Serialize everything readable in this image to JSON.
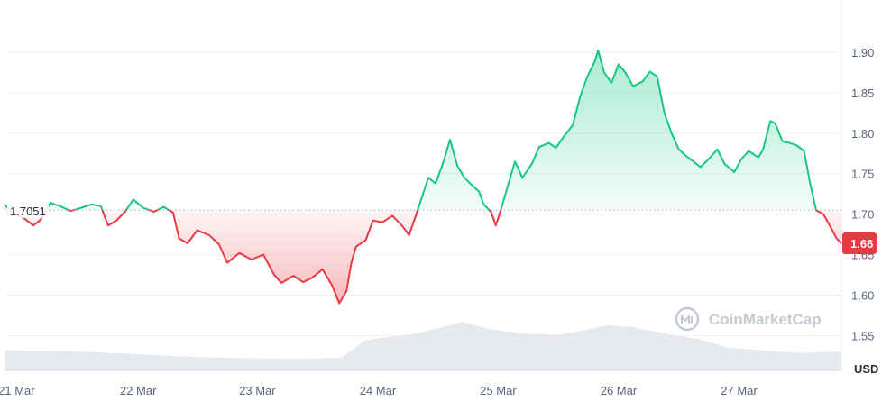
{
  "chart_data": {
    "type": "area",
    "title": "",
    "currency_label": "USD",
    "reference_price_label": "1.7051",
    "reference_price": 1.7051,
    "current_price_label": "1.66",
    "current_price": 1.664,
    "watermark": "CoinMarketCap",
    "ylim": [
      1.5,
      1.96
    ],
    "y_ticks": [
      "1.90",
      "1.85",
      "1.80",
      "1.75",
      "1.70",
      "1.65",
      "1.60",
      "1.55"
    ],
    "y_tick_values": [
      1.9,
      1.85,
      1.8,
      1.75,
      1.7,
      1.65,
      1.6,
      1.55
    ],
    "x_range_days": [
      0,
      6.95
    ],
    "x_ticks": [
      "21 Mar",
      "22 Mar",
      "23 Mar",
      "24 Mar",
      "25 Mar",
      "26 Mar",
      "27 Mar"
    ],
    "x_tick_days": [
      0.1,
      1.11,
      2.1,
      3.1,
      4.1,
      5.1,
      6.1
    ],
    "colors": {
      "up": "#16c784",
      "down": "#ea3943",
      "up_fill": "#16c784",
      "down_fill": "#ea3943",
      "volume": "#e6e9ee"
    },
    "price_points": [
      [
        0.0,
        1.712
      ],
      [
        0.08,
        1.7
      ],
      [
        0.16,
        1.695
      ],
      [
        0.24,
        1.686
      ],
      [
        0.3,
        1.693
      ],
      [
        0.38,
        1.714
      ],
      [
        0.46,
        1.71
      ],
      [
        0.55,
        1.704
      ],
      [
        0.64,
        1.708
      ],
      [
        0.72,
        1.712
      ],
      [
        0.8,
        1.71
      ],
      [
        0.86,
        1.686
      ],
      [
        0.93,
        1.692
      ],
      [
        1.0,
        1.703
      ],
      [
        1.07,
        1.718
      ],
      [
        1.15,
        1.708
      ],
      [
        1.24,
        1.703
      ],
      [
        1.32,
        1.709
      ],
      [
        1.4,
        1.702
      ],
      [
        1.45,
        1.67
      ],
      [
        1.52,
        1.664
      ],
      [
        1.6,
        1.68
      ],
      [
        1.7,
        1.674
      ],
      [
        1.78,
        1.663
      ],
      [
        1.85,
        1.64
      ],
      [
        1.95,
        1.652
      ],
      [
        2.05,
        1.644
      ],
      [
        2.15,
        1.65
      ],
      [
        2.24,
        1.625
      ],
      [
        2.3,
        1.615
      ],
      [
        2.4,
        1.624
      ],
      [
        2.48,
        1.616
      ],
      [
        2.56,
        1.622
      ],
      [
        2.64,
        1.632
      ],
      [
        2.72,
        1.612
      ],
      [
        2.78,
        1.59
      ],
      [
        2.84,
        1.605
      ],
      [
        2.88,
        1.64
      ],
      [
        2.92,
        1.66
      ],
      [
        3.0,
        1.668
      ],
      [
        3.06,
        1.692
      ],
      [
        3.14,
        1.69
      ],
      [
        3.22,
        1.698
      ],
      [
        3.3,
        1.686
      ],
      [
        3.36,
        1.674
      ],
      [
        3.42,
        1.7
      ],
      [
        3.46,
        1.718
      ],
      [
        3.52,
        1.745
      ],
      [
        3.58,
        1.738
      ],
      [
        3.64,
        1.762
      ],
      [
        3.7,
        1.792
      ],
      [
        3.76,
        1.76
      ],
      [
        3.82,
        1.745
      ],
      [
        3.88,
        1.736
      ],
      [
        3.94,
        1.728
      ],
      [
        3.98,
        1.712
      ],
      [
        4.04,
        1.703
      ],
      [
        4.08,
        1.686
      ],
      [
        4.12,
        1.704
      ],
      [
        4.18,
        1.735
      ],
      [
        4.24,
        1.765
      ],
      [
        4.3,
        1.745
      ],
      [
        4.38,
        1.762
      ],
      [
        4.44,
        1.783
      ],
      [
        4.52,
        1.788
      ],
      [
        4.58,
        1.782
      ],
      [
        4.64,
        1.795
      ],
      [
        4.72,
        1.81
      ],
      [
        4.78,
        1.845
      ],
      [
        4.84,
        1.87
      ],
      [
        4.9,
        1.888
      ],
      [
        4.93,
        1.902
      ],
      [
        4.98,
        1.875
      ],
      [
        5.04,
        1.862
      ],
      [
        5.1,
        1.885
      ],
      [
        5.16,
        1.874
      ],
      [
        5.22,
        1.858
      ],
      [
        5.3,
        1.864
      ],
      [
        5.36,
        1.876
      ],
      [
        5.42,
        1.87
      ],
      [
        5.48,
        1.825
      ],
      [
        5.54,
        1.8
      ],
      [
        5.6,
        1.78
      ],
      [
        5.66,
        1.772
      ],
      [
        5.72,
        1.765
      ],
      [
        5.78,
        1.758
      ],
      [
        5.86,
        1.77
      ],
      [
        5.92,
        1.78
      ],
      [
        5.98,
        1.762
      ],
      [
        6.06,
        1.752
      ],
      [
        6.12,
        1.768
      ],
      [
        6.18,
        1.778
      ],
      [
        6.26,
        1.77
      ],
      [
        6.3,
        1.78
      ],
      [
        6.36,
        1.815
      ],
      [
        6.4,
        1.812
      ],
      [
        6.46,
        1.79
      ],
      [
        6.52,
        1.788
      ],
      [
        6.58,
        1.785
      ],
      [
        6.64,
        1.778
      ],
      [
        6.69,
        1.738
      ],
      [
        6.74,
        1.705
      ],
      [
        6.8,
        1.7
      ],
      [
        6.86,
        1.684
      ],
      [
        6.91,
        1.67
      ],
      [
        6.95,
        1.664
      ]
    ],
    "volume_points": [
      [
        0.0,
        0.4
      ],
      [
        0.6,
        0.38
      ],
      [
        1.0,
        0.34
      ],
      [
        1.5,
        0.28
      ],
      [
        2.0,
        0.25
      ],
      [
        2.5,
        0.24
      ],
      [
        2.8,
        0.26
      ],
      [
        3.0,
        0.6
      ],
      [
        3.4,
        0.72
      ],
      [
        3.7,
        0.88
      ],
      [
        3.8,
        0.95
      ],
      [
        4.0,
        0.82
      ],
      [
        4.3,
        0.72
      ],
      [
        4.6,
        0.7
      ],
      [
        4.8,
        0.78
      ],
      [
        5.0,
        0.88
      ],
      [
        5.2,
        0.85
      ],
      [
        5.5,
        0.72
      ],
      [
        5.8,
        0.6
      ],
      [
        6.0,
        0.45
      ],
      [
        6.3,
        0.4
      ],
      [
        6.6,
        0.35
      ],
      [
        6.95,
        0.38
      ]
    ]
  }
}
